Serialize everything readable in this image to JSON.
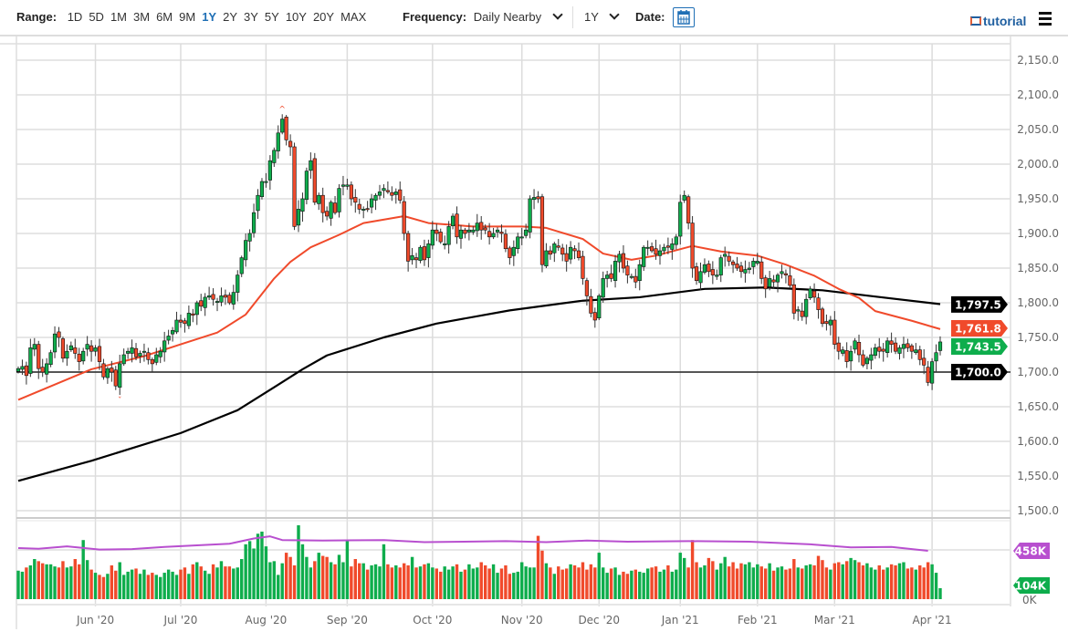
{
  "toolbar": {
    "range_label": "Range:",
    "ranges": [
      "1D",
      "5D",
      "1M",
      "3M",
      "6M",
      "9M",
      "1Y",
      "2Y",
      "3Y",
      "5Y",
      "10Y",
      "20Y",
      "MAX"
    ],
    "active_range": "1Y",
    "frequency_label": "Frequency:",
    "frequency_value": "Daily Nearby",
    "period_value": "1Y",
    "date_label": "Date:",
    "calendar_icon": "calendar-icon",
    "tutorial_label": "tutorial",
    "tutorial_icon": "film-icon",
    "menu_icon": "hamburger-menu-icon"
  },
  "chart_data": {
    "type": "candlestick",
    "ylim": [
      1500,
      2150
    ],
    "yticks": [
      "1,500.0",
      "1,550.0",
      "1,600.0",
      "1,650.0",
      "1,700.0",
      "1,750.0",
      "1,800.0",
      "1,850.0",
      "1,900.0",
      "1,950.0",
      "2,000.0",
      "2,050.0",
      "2,100.0",
      "2,150.0"
    ],
    "ytick_values": [
      1500,
      1550,
      1600,
      1650,
      1700,
      1750,
      1800,
      1850,
      1900,
      1950,
      2000,
      2050,
      2100,
      2150
    ],
    "grid": true,
    "months": [
      [
        "Jun '20",
        19
      ],
      [
        "Jul '20",
        40
      ],
      [
        "Aug '20",
        61
      ],
      [
        "Sep '20",
        81
      ],
      [
        "Oct '20",
        102
      ],
      [
        "Nov '20",
        124
      ],
      [
        "Dec '20",
        143
      ],
      [
        "Jan '21",
        163
      ],
      [
        "Feb '21",
        182
      ],
      [
        "Mar '21",
        201
      ],
      [
        "Apr '21",
        225
      ]
    ],
    "closes": [
      1705,
      1708,
      1695,
      1735,
      1740,
      1705,
      1700,
      1712,
      1728,
      1755,
      1750,
      1720,
      1730,
      1738,
      1727,
      1715,
      1730,
      1740,
      1730,
      1735,
      1715,
      1693,
      1705,
      1700,
      1680,
      1712,
      1725,
      1730,
      1735,
      1722,
      1727,
      1730,
      1718,
      1712,
      1725,
      1730,
      1745,
      1752,
      1760,
      1775,
      1772,
      1770,
      1785,
      1782,
      1800,
      1795,
      1808,
      1810,
      1805,
      1802,
      1810,
      1808,
      1800,
      1815,
      1840,
      1865,
      1890,
      1900,
      1930,
      1955,
      1975,
      1975,
      2005,
      2020,
      2045,
      2065,
      2035,
      2025,
      1910,
      1935,
      1950,
      1990,
      2005,
      1945,
      1955,
      1930,
      1925,
      1945,
      1930,
      1965,
      1970,
      1970,
      1950,
      1945,
      1935,
      1935,
      1935,
      1950,
      1955,
      1960,
      1965,
      1960,
      1955,
      1960,
      1948,
      1900,
      1860,
      1868,
      1862,
      1880,
      1862,
      1885,
      1905,
      1900,
      1888,
      1885,
      1910,
      1925,
      1895,
      1905,
      1900,
      1905,
      1905,
      1915,
      1905,
      1905,
      1895,
      1900,
      1905,
      1900,
      1878,
      1865,
      1880,
      1895,
      1895,
      1905,
      1950,
      1952,
      1950,
      1855,
      1875,
      1870,
      1885,
      1880,
      1870,
      1860,
      1880,
      1875,
      1865,
      1835,
      1810,
      1785,
      1775,
      1810,
      1835,
      1840,
      1835,
      1860,
      1870,
      1850,
      1840,
      1838,
      1830,
      1855,
      1880,
      1880,
      1875,
      1870,
      1875,
      1880,
      1880,
      1885,
      1895,
      1945,
      1955,
      1915,
      1850,
      1832,
      1845,
      1855,
      1845,
      1840,
      1840,
      1865,
      1870,
      1860,
      1855,
      1850,
      1845,
      1848,
      1850,
      1860,
      1860,
      1835,
      1820,
      1835,
      1830,
      1840,
      1845,
      1840,
      1825,
      1785,
      1790,
      1780,
      1805,
      1820,
      1808,
      1790,
      1770,
      1770,
      1775,
      1740,
      1730,
      1732,
      1715,
      1730,
      1745,
      1725,
      1710,
      1720,
      1725,
      1735,
      1730,
      1730,
      1745,
      1740,
      1730,
      1735,
      1740,
      1735,
      1730,
      1732,
      1718,
      1710,
      1685,
      1715,
      1728,
      1743.5
    ],
    "ma_red": [
      [
        0,
        1660
      ],
      [
        18,
        1704
      ],
      [
        31,
        1723
      ],
      [
        40,
        1740
      ],
      [
        49,
        1757
      ],
      [
        56,
        1783
      ],
      [
        63,
        1835
      ],
      [
        67,
        1859
      ],
      [
        72,
        1880
      ],
      [
        79,
        1898
      ],
      [
        85,
        1915
      ],
      [
        95,
        1925
      ],
      [
        101,
        1915
      ],
      [
        112,
        1910
      ],
      [
        124,
        1910
      ],
      [
        130,
        1908
      ],
      [
        139,
        1892
      ],
      [
        144,
        1871
      ],
      [
        151,
        1862
      ],
      [
        157,
        1868
      ],
      [
        166,
        1882
      ],
      [
        173,
        1874
      ],
      [
        182,
        1868
      ],
      [
        189,
        1855
      ],
      [
        196,
        1839
      ],
      [
        202,
        1820
      ],
      [
        207,
        1807
      ],
      [
        211,
        1788
      ],
      [
        220,
        1774
      ],
      [
        227,
        1762
      ]
    ],
    "ma_black": [
      [
        0,
        1543
      ],
      [
        18,
        1572
      ],
      [
        40,
        1612
      ],
      [
        54,
        1645
      ],
      [
        63,
        1678
      ],
      [
        70,
        1704
      ],
      [
        76,
        1724
      ],
      [
        90,
        1750
      ],
      [
        103,
        1770
      ],
      [
        121,
        1789
      ],
      [
        139,
        1803
      ],
      [
        153,
        1808
      ],
      [
        169,
        1820
      ],
      [
        184,
        1822
      ],
      [
        198,
        1818
      ],
      [
        211,
        1809
      ],
      [
        227,
        1798
      ]
    ],
    "hline": 1700,
    "tags": [
      {
        "text": "1,797.5",
        "value": 1797.5,
        "color": "#000000"
      },
      {
        "text": "1,761.8",
        "value": 1761.8,
        "color": "#f04a2b"
      },
      {
        "text": "1,743.5",
        "value": 1743.5,
        "color": "#0ead4c"
      },
      {
        "text": "1,700.0",
        "value": 1700,
        "color": "#000000"
      }
    ],
    "volume": {
      "ylim": [
        0,
        650
      ],
      "zero_label": "0K",
      "values": [
        270,
        260,
        300,
        320,
        380,
        360,
        340,
        330,
        330,
        310,
        300,
        360,
        300,
        310,
        380,
        330,
        560,
        370,
        280,
        250,
        230,
        210,
        240,
        320,
        270,
        350,
        230,
        260,
        280,
        290,
        240,
        280,
        230,
        250,
        230,
        210,
        250,
        280,
        260,
        230,
        280,
        300,
        240,
        330,
        350,
        310,
        270,
        240,
        330,
        300,
        360,
        310,
        310,
        290,
        300,
        380,
        520,
        550,
        480,
        620,
        640,
        500,
        350,
        360,
        230,
        340,
        440,
        400,
        320,
        700,
        520,
        400,
        300,
        360,
        440,
        410,
        400,
        350,
        330,
        420,
        350,
        560,
        310,
        380,
        340,
        340,
        280,
        320,
        330,
        310,
        520,
        330,
        300,
        320,
        300,
        340,
        320,
        400,
        300,
        310,
        330,
        340,
        300,
        290,
        260,
        310,
        280,
        310,
        330,
        260,
        280,
        330,
        290,
        300,
        350,
        320,
        290,
        330,
        250,
        290,
        320,
        240,
        250,
        260,
        350,
        310,
        300,
        300,
        600,
        460,
        340,
        300,
        240,
        310,
        280,
        290,
        330,
        320,
        300,
        350,
        280,
        330,
        300,
        440,
        300,
        250,
        290,
        300,
        230,
        260,
        240,
        270,
        280,
        260,
        250,
        290,
        300,
        310,
        260,
        280,
        320,
        260,
        280,
        440,
        390,
        300,
        560,
        350,
        300,
        320,
        390,
        360,
        280,
        340,
        400,
        310,
        350,
        290,
        340,
        330,
        350,
        300,
        330,
        310,
        290,
        340,
        270,
        300,
        310,
        280,
        290,
        380,
        300,
        290,
        320,
        330,
        320,
        410,
        370,
        300,
        280,
        340,
        350,
        330,
        360,
        390,
        370,
        350,
        320,
        340,
        300,
        280,
        320,
        280,
        300,
        330,
        320,
        340,
        350,
        290,
        300,
        280,
        320,
        300,
        350,
        330,
        250,
        104
      ],
      "ma": [
        [
          0,
          484
        ],
        [
          5,
          478
        ],
        [
          12,
          500
        ],
        [
          20,
          470
        ],
        [
          28,
          474
        ],
        [
          36,
          495
        ],
        [
          44,
          510
        ],
        [
          52,
          525
        ],
        [
          58,
          575
        ],
        [
          62,
          595
        ],
        [
          65,
          560
        ],
        [
          75,
          555
        ],
        [
          90,
          560
        ],
        [
          100,
          540
        ],
        [
          120,
          550
        ],
        [
          130,
          540
        ],
        [
          140,
          555
        ],
        [
          150,
          545
        ],
        [
          165,
          550
        ],
        [
          180,
          545
        ],
        [
          195,
          520
        ],
        [
          205,
          490
        ],
        [
          215,
          495
        ],
        [
          224,
          458
        ]
      ],
      "tags": [
        {
          "text": "458K",
          "value": 458,
          "color": "#b84fcf"
        },
        {
          "text": "104K",
          "value": 104,
          "color": "#0ead4c"
        }
      ]
    },
    "colors": {
      "up": "#0ead4c",
      "down": "#f04a2b",
      "ma_red": "#f04a2b",
      "ma_black": "#000000",
      "vol_ma": "#b84fcf"
    }
  }
}
